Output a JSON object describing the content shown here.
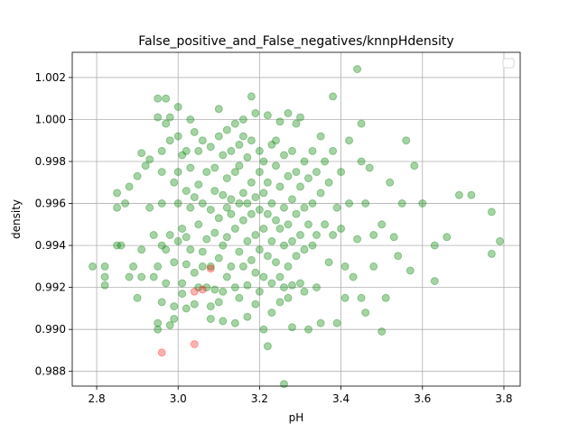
{
  "chart_data": {
    "type": "scatter",
    "title": "False_positive_and_False_negatives/knnpHdensity",
    "xlabel": "pH",
    "ylabel": "density",
    "xlim": [
      2.74,
      3.84
    ],
    "ylim": [
      0.9873,
      1.0032
    ],
    "xticks": [
      2.8,
      3.0,
      3.2,
      3.4,
      3.6,
      3.8
    ],
    "xtick_labels": [
      "2.8",
      "3.0",
      "3.2",
      "3.4",
      "3.6",
      "3.8"
    ],
    "yticks": [
      0.988,
      0.99,
      0.992,
      0.994,
      0.996,
      0.998,
      1.0,
      1.002
    ],
    "ytick_labels": [
      "0.988",
      "0.990",
      "0.992",
      "0.994",
      "0.996",
      "0.998",
      "1.000",
      "1.002"
    ],
    "grid": true,
    "legend": "top-right (empty)",
    "series": [
      {
        "color": "#008000",
        "opacity": 0.35,
        "points": [
          [
            2.79,
            0.993
          ],
          [
            2.82,
            0.993
          ],
          [
            2.82,
            0.9925
          ],
          [
            2.82,
            0.9921
          ],
          [
            2.85,
            0.994
          ],
          [
            2.85,
            0.9958
          ],
          [
            2.85,
            0.9965
          ],
          [
            2.86,
            0.994
          ],
          [
            2.87,
            0.996
          ],
          [
            2.88,
            0.9925
          ],
          [
            2.88,
            0.9968
          ],
          [
            2.89,
            0.993
          ],
          [
            2.9,
            0.9973
          ],
          [
            2.9,
            0.9915
          ],
          [
            2.91,
            0.9938
          ],
          [
            2.91,
            0.9925
          ],
          [
            2.91,
            0.9984
          ],
          [
            2.92,
            0.9978
          ],
          [
            2.93,
            0.9981
          ],
          [
            2.93,
            0.9958
          ],
          [
            2.94,
            0.9925
          ],
          [
            2.94,
            0.9945
          ],
          [
            2.95,
            0.993
          ],
          [
            2.95,
            0.99
          ],
          [
            2.95,
            0.9903
          ],
          [
            2.95,
            1.0001
          ],
          [
            2.95,
            1.001
          ],
          [
            2.96,
            0.9975
          ],
          [
            2.96,
            0.9985
          ],
          [
            2.96,
            0.994
          ],
          [
            2.96,
            0.996
          ],
          [
            2.96,
            0.9913
          ],
          [
            2.97,
            0.9922
          ],
          [
            2.97,
            0.9938
          ],
          [
            2.97,
            1.001
          ],
          [
            2.97,
            0.9998
          ],
          [
            2.98,
            0.999
          ],
          [
            2.98,
            0.9945
          ],
          [
            2.98,
            0.9902
          ],
          [
            2.98,
            1.0001
          ],
          [
            2.99,
            0.9905
          ],
          [
            2.99,
            0.997
          ],
          [
            2.99,
            0.9932
          ],
          [
            2.99,
            0.9911
          ],
          [
            3.0,
            0.9942
          ],
          [
            3.0,
            0.9975
          ],
          [
            3.0,
            0.9992
          ],
          [
            3.0,
            0.996
          ],
          [
            3.0,
            1.0006
          ],
          [
            3.01,
            0.9983
          ],
          [
            3.01,
            0.9922
          ],
          [
            3.01,
            0.9917
          ],
          [
            3.01,
            0.9948
          ],
          [
            3.02,
            0.9985
          ],
          [
            3.02,
            0.991
          ],
          [
            3.02,
            0.9931
          ],
          [
            3.02,
            0.9944
          ],
          [
            3.02,
            0.9966
          ],
          [
            3.03,
            0.9977
          ],
          [
            3.03,
            0.9958
          ],
          [
            3.03,
            0.9938
          ],
          [
            3.03,
            1.0
          ],
          [
            3.04,
            0.9963
          ],
          [
            3.04,
            0.9912
          ],
          [
            3.04,
            0.9994
          ],
          [
            3.04,
            0.9927
          ],
          [
            3.05,
            0.9985
          ],
          [
            3.05,
            0.992
          ],
          [
            3.05,
            0.995
          ],
          [
            3.05,
            0.9969
          ],
          [
            3.06,
            0.999
          ],
          [
            3.06,
            0.9937
          ],
          [
            3.06,
            0.993
          ],
          [
            3.06,
            0.996
          ],
          [
            3.07,
            0.9975
          ],
          [
            3.07,
            0.9943
          ],
          [
            3.07,
            0.992
          ],
          [
            3.08,
            0.9987
          ],
          [
            3.08,
            0.9957
          ],
          [
            3.08,
            0.993
          ],
          [
            3.08,
            0.9911
          ],
          [
            3.08,
            0.9905
          ],
          [
            3.09,
            0.9977
          ],
          [
            3.09,
            0.9946
          ],
          [
            3.09,
            0.9919
          ],
          [
            3.09,
            0.9966
          ],
          [
            3.1,
            0.9992
          ],
          [
            3.1,
            0.9953
          ],
          [
            3.1,
            0.9934
          ],
          [
            3.1,
            0.9913
          ],
          [
            3.1,
            1.0005
          ],
          [
            3.11,
            0.9983
          ],
          [
            3.11,
            0.9964
          ],
          [
            3.11,
            0.994
          ],
          [
            3.11,
            0.9918
          ],
          [
            3.11,
            0.9904
          ],
          [
            3.12,
            0.9972
          ],
          [
            3.12,
            0.9958
          ],
          [
            3.12,
            0.9944
          ],
          [
            3.12,
            0.9925
          ],
          [
            3.12,
            0.9995
          ],
          [
            3.13,
            0.9985
          ],
          [
            3.13,
            0.9955
          ],
          [
            3.13,
            0.993
          ],
          [
            3.13,
            0.9962
          ],
          [
            3.14,
            0.9975
          ],
          [
            3.14,
            0.9948
          ],
          [
            3.14,
            0.992
          ],
          [
            3.14,
            0.9903
          ],
          [
            3.14,
            0.9998
          ],
          [
            3.15,
            0.9988
          ],
          [
            3.15,
            0.996
          ],
          [
            3.15,
            0.9937
          ],
          [
            3.15,
            0.9915
          ],
          [
            3.15,
            0.9978
          ],
          [
            3.16,
            0.9965
          ],
          [
            3.16,
            0.9952
          ],
          [
            3.16,
            0.993
          ],
          [
            3.16,
            0.9992
          ],
          [
            3.16,
            1.0
          ],
          [
            3.17,
            0.9982
          ],
          [
            3.17,
            0.996
          ],
          [
            3.17,
            0.9942
          ],
          [
            3.17,
            0.9921
          ],
          [
            3.17,
            0.9906
          ],
          [
            3.18,
            0.997
          ],
          [
            3.18,
            0.9955
          ],
          [
            3.18,
            0.9933
          ],
          [
            3.18,
            1.0011
          ],
          [
            3.18,
            0.999
          ],
          [
            3.19,
            0.9963
          ],
          [
            3.19,
            0.9945
          ],
          [
            3.19,
            0.9927
          ],
          [
            3.19,
            0.9912
          ],
          [
            3.19,
            1.0003
          ],
          [
            3.2,
            0.9975
          ],
          [
            3.2,
            0.9957
          ],
          [
            3.2,
            0.9938
          ],
          [
            3.2,
            0.9918
          ],
          [
            3.2,
            0.9985
          ],
          [
            3.21,
            0.9965
          ],
          [
            3.21,
            0.9948
          ],
          [
            3.21,
            0.9925
          ],
          [
            3.21,
            0.99
          ],
          [
            3.21,
            0.998
          ],
          [
            3.22,
            0.997
          ],
          [
            3.22,
            0.9955
          ],
          [
            3.22,
            0.9935
          ],
          [
            3.22,
            0.9892
          ],
          [
            3.22,
            1.0002
          ],
          [
            3.23,
            0.9988
          ],
          [
            3.23,
            0.996
          ],
          [
            3.23,
            0.9942
          ],
          [
            3.23,
            0.9922
          ],
          [
            3.23,
            0.9908
          ],
          [
            3.24,
            0.9978
          ],
          [
            3.24,
            0.9952
          ],
          [
            3.24,
            0.9932
          ],
          [
            3.24,
            0.999
          ],
          [
            3.25,
            0.9968
          ],
          [
            3.25,
            0.9948
          ],
          [
            3.25,
            0.9925
          ],
          [
            3.25,
            0.9913
          ],
          [
            3.25,
            0.9999
          ],
          [
            3.26,
            0.9983
          ],
          [
            3.26,
            0.9958
          ],
          [
            3.26,
            0.994
          ],
          [
            3.26,
            0.9874
          ],
          [
            3.26,
            0.992
          ],
          [
            3.27,
            0.9973
          ],
          [
            3.27,
            0.995
          ],
          [
            3.27,
            0.993
          ],
          [
            3.27,
            0.9915
          ],
          [
            3.27,
            1.0003
          ],
          [
            3.28,
            0.9985
          ],
          [
            3.28,
            0.9962
          ],
          [
            3.28,
            0.9942
          ],
          [
            3.28,
            0.9921
          ],
          [
            3.28,
            0.9901
          ],
          [
            3.29,
            0.9975
          ],
          [
            3.29,
            0.9955
          ],
          [
            3.29,
            0.9935
          ],
          [
            3.29,
            0.9998
          ],
          [
            3.3,
            0.9968
          ],
          [
            3.3,
            0.9945
          ],
          [
            3.3,
            0.9922
          ],
          [
            3.3,
            1.0001
          ],
          [
            3.31,
            0.998
          ],
          [
            3.31,
            0.9958
          ],
          [
            3.31,
            0.9938
          ],
          [
            3.31,
            0.9918
          ],
          [
            3.32,
            0.9972
          ],
          [
            3.32,
            0.995
          ],
          [
            3.32,
            0.99
          ],
          [
            3.33,
            0.9985
          ],
          [
            3.33,
            0.996
          ],
          [
            3.33,
            0.994
          ],
          [
            3.34,
            0.9975
          ],
          [
            3.34,
            0.9945
          ],
          [
            3.34,
            0.992
          ],
          [
            3.35,
            0.9992
          ],
          [
            3.35,
            0.9965
          ],
          [
            3.35,
            0.9903
          ],
          [
            3.36,
            0.998
          ],
          [
            3.36,
            0.995
          ],
          [
            3.37,
            0.997
          ],
          [
            3.37,
            0.9932
          ],
          [
            3.38,
            0.9985
          ],
          [
            3.38,
            0.9945
          ],
          [
            3.38,
            1.0011
          ],
          [
            3.39,
            0.9958
          ],
          [
            3.39,
            0.9903
          ],
          [
            3.4,
            0.9975
          ],
          [
            3.4,
            0.9948
          ],
          [
            3.41,
            0.993
          ],
          [
            3.41,
            0.9915
          ],
          [
            3.42,
            0.999
          ],
          [
            3.42,
            0.996
          ],
          [
            3.43,
            0.9925
          ],
          [
            3.44,
            0.9943
          ],
          [
            3.44,
            1.0024
          ],
          [
            3.45,
            0.9998
          ],
          [
            3.45,
            0.998
          ],
          [
            3.45,
            0.9915
          ],
          [
            3.46,
            0.996
          ],
          [
            3.46,
            0.9908
          ],
          [
            3.47,
            0.9977
          ],
          [
            3.48,
            0.9945
          ],
          [
            3.48,
            0.993
          ],
          [
            3.5,
            0.995
          ],
          [
            3.5,
            0.9899
          ],
          [
            3.51,
            0.9915
          ],
          [
            3.52,
            0.997
          ],
          [
            3.53,
            0.9944
          ],
          [
            3.54,
            0.9935
          ],
          [
            3.55,
            0.996
          ],
          [
            3.56,
            0.999
          ],
          [
            3.57,
            0.9928
          ],
          [
            3.58,
            0.9978
          ],
          [
            3.6,
            0.996
          ],
          [
            3.63,
            0.994
          ],
          [
            3.63,
            0.9923
          ],
          [
            3.66,
            0.9944
          ],
          [
            3.69,
            0.9964
          ],
          [
            3.72,
            0.9964
          ],
          [
            3.77,
            0.9956
          ],
          [
            3.77,
            0.9936
          ],
          [
            3.79,
            0.9942
          ]
        ]
      },
      {
        "color": "#ff0000",
        "opacity": 0.3,
        "points": [
          [
            2.96,
            0.9889
          ],
          [
            3.04,
            0.9893
          ],
          [
            3.04,
            0.9918
          ],
          [
            3.06,
            0.9919
          ],
          [
            3.08,
            0.9929
          ]
        ]
      }
    ]
  }
}
